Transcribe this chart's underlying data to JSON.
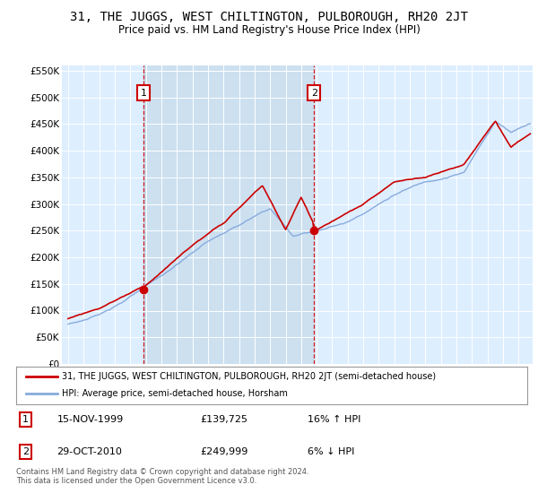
{
  "title": "31, THE JUGGS, WEST CHILTINGTON, PULBOROUGH, RH20 2JT",
  "subtitle": "Price paid vs. HM Land Registry's House Price Index (HPI)",
  "background_color": "#ddeeff",
  "shaded_region_color": "#cce0f0",
  "ylabel_ticks": [
    "£0",
    "£50K",
    "£100K",
    "£150K",
    "£200K",
    "£250K",
    "£300K",
    "£350K",
    "£400K",
    "£450K",
    "£500K",
    "£550K"
  ],
  "ytick_values": [
    0,
    50000,
    100000,
    150000,
    200000,
    250000,
    300000,
    350000,
    400000,
    450000,
    500000,
    550000
  ],
  "sale1_price": 139725,
  "sale1_x": 1999.87,
  "sale2_price": 249999,
  "sale2_x": 2010.83,
  "legend_line1": "31, THE JUGGS, WEST CHILTINGTON, PULBOROUGH, RH20 2JT (semi-detached house)",
  "legend_line2": "HPI: Average price, semi-detached house, Horsham",
  "footnote": "Contains HM Land Registry data © Crown copyright and database right 2024.\nThis data is licensed under the Open Government Licence v3.0.",
  "red_color": "#cc0000",
  "blue_color": "#88aadd",
  "xlim_left": 1994.6,
  "xlim_right": 2024.9,
  "ylim_top": 560000
}
